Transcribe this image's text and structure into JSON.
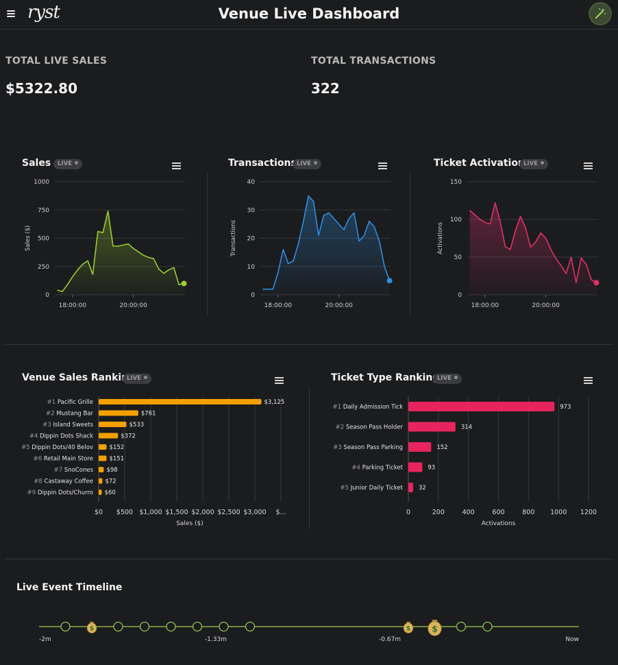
{
  "header": {
    "title": "Venue Live Dashboard",
    "logo": "ryst",
    "menu_icon": "hamburger-menu-icon",
    "action_icon": "magic-wand-icon",
    "accent": "#8dc63f"
  },
  "kpis": [
    {
      "label": "TOTAL LIVE SALES",
      "value": "$5322.80"
    },
    {
      "label": "TOTAL TRANSACTIONS",
      "value": "322"
    }
  ],
  "live_badge": "LIVE",
  "timeline": {
    "title": "Live Event Timeline",
    "labels": [
      "-2m",
      "-1.33m",
      "-0.67m",
      "Now"
    ],
    "events": [
      {
        "t": -1.9,
        "type": "circle"
      },
      {
        "t": -1.8,
        "type": "money"
      },
      {
        "t": -1.7,
        "type": "circle"
      },
      {
        "t": -1.6,
        "type": "circle"
      },
      {
        "t": -1.5,
        "type": "circle"
      },
      {
        "t": -1.4,
        "type": "circle"
      },
      {
        "t": -1.3,
        "type": "circle"
      },
      {
        "t": -1.2,
        "type": "circle"
      },
      {
        "t": -0.6,
        "type": "money"
      },
      {
        "t": -0.5,
        "type": "money-large"
      },
      {
        "t": -0.4,
        "type": "circle"
      },
      {
        "t": -0.3,
        "type": "circle"
      }
    ]
  },
  "chart_data": [
    {
      "id": "sales",
      "type": "area",
      "title": "Sales",
      "ylabel": "Sales ($)",
      "color": "#9acd32",
      "ylim": [
        0,
        1000
      ],
      "yticks": [
        "0",
        "250",
        "500",
        "750",
        "1000"
      ],
      "xticks": [
        "18:00:00",
        "20:00:00"
      ],
      "xtick_minutes": [
        1080,
        1200
      ],
      "xlim_minutes": [
        1045,
        1302
      ],
      "x_minutes": [
        1050,
        1060,
        1070,
        1080,
        1090,
        1100,
        1110,
        1120,
        1130,
        1140,
        1150,
        1160,
        1170,
        1180,
        1190,
        1200,
        1210,
        1220,
        1230,
        1240,
        1250,
        1260,
        1270,
        1280,
        1290,
        1300
      ],
      "values": [
        40,
        30,
        90,
        160,
        220,
        270,
        300,
        180,
        560,
        550,
        740,
        430,
        430,
        440,
        450,
        410,
        380,
        350,
        330,
        320,
        230,
        190,
        220,
        240,
        90,
        100
      ]
    },
    {
      "id": "transactions",
      "type": "area",
      "title": "Transactions",
      "ylabel": "Transactions",
      "color": "#2e8ee0",
      "ylim": [
        0,
        40
      ],
      "yticks": [
        "0",
        "10",
        "20",
        "30",
        "40"
      ],
      "xticks": [
        "18:00:00",
        "20:00:00"
      ],
      "xtick_minutes": [
        1080,
        1200
      ],
      "xlim_minutes": [
        1045,
        1302
      ],
      "x_minutes": [
        1050,
        1060,
        1070,
        1080,
        1090,
        1100,
        1110,
        1120,
        1130,
        1140,
        1150,
        1160,
        1170,
        1180,
        1190,
        1200,
        1210,
        1220,
        1230,
        1240,
        1250,
        1260,
        1270,
        1280,
        1290,
        1300
      ],
      "values": [
        2,
        2,
        2,
        8,
        16,
        11,
        12,
        18,
        26,
        35,
        33,
        21,
        28,
        29,
        27,
        25,
        23,
        27,
        29,
        19,
        21,
        26,
        24,
        19,
        10,
        5
      ]
    },
    {
      "id": "ticket-activations",
      "type": "area",
      "title": "Ticket Activations",
      "ylabel": "Activations",
      "color": "#e0306a",
      "ylim": [
        0,
        150
      ],
      "yticks": [
        "0",
        "50",
        "100",
        "150"
      ],
      "xticks": [
        "18:00:00",
        "20:00:00"
      ],
      "xtick_minutes": [
        1080,
        1200
      ],
      "xlim_minutes": [
        1045,
        1302
      ],
      "x_minutes": [
        1050,
        1060,
        1070,
        1080,
        1090,
        1100,
        1110,
        1120,
        1130,
        1140,
        1150,
        1160,
        1170,
        1180,
        1190,
        1200,
        1210,
        1220,
        1230,
        1240,
        1250,
        1260,
        1270,
        1280,
        1290,
        1300
      ],
      "values": [
        112,
        106,
        100,
        96,
        94,
        122,
        97,
        64,
        60,
        85,
        104,
        89,
        63,
        70,
        82,
        75,
        60,
        48,
        39,
        28,
        50,
        16,
        49,
        40,
        20,
        16
      ]
    },
    {
      "id": "venue-sales-ranking",
      "type": "bar",
      "orientation": "horizontal",
      "title": "Venue Sales Ranking",
      "xlabel": "Sales ($)",
      "color": "#f5a000",
      "xlim": [
        0,
        3500
      ],
      "xticks": [
        "$0",
        "$500",
        "$1,000",
        "$1,500",
        "$2,000",
        "$2,500",
        "$3,000",
        "$..."
      ],
      "categories": [
        {
          "rank": "#1",
          "name": "Pacific Grille"
        },
        {
          "rank": "#2",
          "name": "Mustang Bar"
        },
        {
          "rank": "#3",
          "name": "Island Sweets"
        },
        {
          "rank": "#4",
          "name": "Dippin Dots Shack"
        },
        {
          "rank": "#5",
          "name": "Dippin Dots/40 Belov"
        },
        {
          "rank": "#6",
          "name": "Retail Main Store"
        },
        {
          "rank": "#7",
          "name": "SnoCones"
        },
        {
          "rank": "#8",
          "name": "Castaway Coffee"
        },
        {
          "rank": "#9",
          "name": "Dippin Dots/Churro"
        }
      ],
      "values": [
        3125,
        761,
        533,
        372,
        152,
        151,
        98,
        72,
        60
      ],
      "value_labels": [
        "$3,125",
        "$761",
        "$533",
        "$372",
        "$152",
        "$151",
        "$98",
        "$72",
        "$60"
      ]
    },
    {
      "id": "ticket-type-rankings",
      "type": "bar",
      "orientation": "horizontal",
      "title": "Ticket Type Rankings",
      "xlabel": "Activations",
      "color": "#e8245e",
      "xlim": [
        0,
        1200
      ],
      "xticks": [
        "0",
        "200",
        "400",
        "600",
        "800",
        "1000",
        "1200"
      ],
      "categories": [
        {
          "rank": "#1",
          "name": "Daily Admission Tick"
        },
        {
          "rank": "#2",
          "name": "Season Pass Holder"
        },
        {
          "rank": "#3",
          "name": "Season Pass Parking"
        },
        {
          "rank": "#4",
          "name": "Parking Ticket"
        },
        {
          "rank": "#5",
          "name": "Junior Daily Ticket"
        }
      ],
      "values": [
        973,
        314,
        152,
        93,
        32
      ],
      "value_labels": [
        "973",
        "314",
        "152",
        "93",
        "32"
      ]
    }
  ]
}
